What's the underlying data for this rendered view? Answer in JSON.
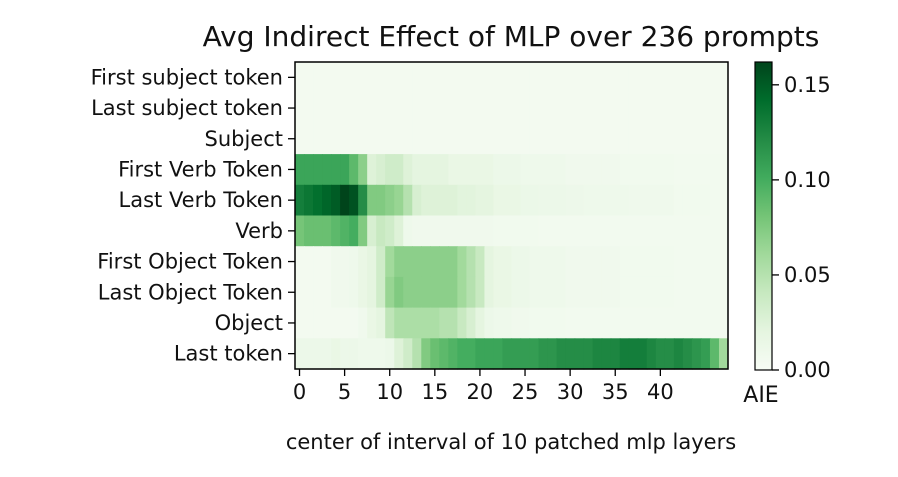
{
  "chart_data": {
    "type": "heatmap",
    "title": "Avg Indirect Effect of MLP over 236 prompts",
    "xlabel": "center of interval of 10 patched mlp layers",
    "colorbar_label": "AIE",
    "colormap": "Greens",
    "color_low": "#f7fcf5",
    "color_high": "#00441b",
    "vmin": 0.0,
    "vmax": 0.162,
    "x_ticks": [
      0,
      5,
      10,
      15,
      20,
      25,
      30,
      35,
      40
    ],
    "x_range": [
      0,
      47
    ],
    "colorbar_ticks": [
      "0.00",
      "0.05",
      "0.10",
      "0.15"
    ],
    "colorbar_tick_values": [
      0.0,
      0.05,
      0.1,
      0.15
    ],
    "rows": [
      "First subject token",
      "Last subject token",
      "Subject",
      "First Verb Token",
      "Last Verb Token",
      "Verb",
      "First Object Token",
      "Last Object Token",
      "Object",
      "Last token"
    ],
    "values": [
      [
        0.005,
        0.005,
        0.005,
        0.005,
        0.005,
        0.005,
        0.005,
        0.005,
        0.005,
        0.005,
        0.005,
        0.005,
        0.005,
        0.005,
        0.005,
        0.005,
        0.005,
        0.005,
        0.005,
        0.005,
        0.005,
        0.005,
        0.005,
        0.005,
        0.005,
        0.005,
        0.005,
        0.005,
        0.005,
        0.005,
        0.005,
        0.005,
        0.005,
        0.005,
        0.005,
        0.005,
        0.005,
        0.005,
        0.005,
        0.005,
        0.005,
        0.005,
        0.005,
        0.005,
        0.005,
        0.005,
        0.005,
        0.005
      ],
      [
        0.005,
        0.005,
        0.005,
        0.005,
        0.005,
        0.005,
        0.005,
        0.005,
        0.005,
        0.005,
        0.005,
        0.005,
        0.005,
        0.005,
        0.005,
        0.005,
        0.005,
        0.005,
        0.005,
        0.005,
        0.005,
        0.005,
        0.005,
        0.005,
        0.005,
        0.005,
        0.005,
        0.005,
        0.005,
        0.005,
        0.005,
        0.005,
        0.005,
        0.005,
        0.005,
        0.005,
        0.005,
        0.005,
        0.005,
        0.005,
        0.005,
        0.005,
        0.005,
        0.005,
        0.005,
        0.005,
        0.005,
        0.005
      ],
      [
        0.005,
        0.005,
        0.005,
        0.005,
        0.005,
        0.005,
        0.005,
        0.005,
        0.005,
        0.005,
        0.005,
        0.005,
        0.005,
        0.005,
        0.005,
        0.005,
        0.005,
        0.005,
        0.005,
        0.005,
        0.005,
        0.005,
        0.005,
        0.005,
        0.005,
        0.005,
        0.005,
        0.005,
        0.005,
        0.005,
        0.005,
        0.005,
        0.005,
        0.005,
        0.005,
        0.005,
        0.005,
        0.005,
        0.005,
        0.005,
        0.005,
        0.005,
        0.005,
        0.005,
        0.005,
        0.005,
        0.005,
        0.005
      ],
      [
        0.105,
        0.105,
        0.105,
        0.105,
        0.105,
        0.105,
        0.09,
        0.07,
        0.025,
        0.03,
        0.035,
        0.035,
        0.025,
        0.02,
        0.02,
        0.02,
        0.02,
        0.015,
        0.015,
        0.015,
        0.015,
        0.015,
        0.012,
        0.012,
        0.012,
        0.01,
        0.01,
        0.01,
        0.01,
        0.01,
        0.008,
        0.008,
        0.008,
        0.008,
        0.008,
        0.008,
        0.007,
        0.007,
        0.007,
        0.007,
        0.007,
        0.007,
        0.006,
        0.006,
        0.006,
        0.006,
        0.006,
        0.006
      ],
      [
        0.13,
        0.135,
        0.14,
        0.145,
        0.15,
        0.162,
        0.155,
        0.12,
        0.075,
        0.075,
        0.07,
        0.065,
        0.05,
        0.03,
        0.025,
        0.025,
        0.025,
        0.025,
        0.022,
        0.022,
        0.02,
        0.02,
        0.015,
        0.015,
        0.015,
        0.013,
        0.013,
        0.012,
        0.012,
        0.012,
        0.011,
        0.011,
        0.01,
        0.01,
        0.01,
        0.01,
        0.01,
        0.009,
        0.009,
        0.009,
        0.009,
        0.009,
        0.007,
        0.007,
        0.007,
        0.007,
        0.006,
        0.006
      ],
      [
        0.08,
        0.085,
        0.085,
        0.085,
        0.09,
        0.095,
        0.1,
        0.075,
        0.03,
        0.04,
        0.035,
        0.025,
        0.01,
        0.008,
        0.008,
        0.008,
        0.008,
        0.008,
        0.008,
        0.008,
        0.008,
        0.008,
        0.007,
        0.007,
        0.007,
        0.007,
        0.007,
        0.006,
        0.006,
        0.006,
        0.006,
        0.006,
        0.006,
        0.006,
        0.006,
        0.006,
        0.006,
        0.006,
        0.006,
        0.006,
        0.006,
        0.006,
        0.006,
        0.006,
        0.006,
        0.006,
        0.006,
        0.006
      ],
      [
        0.005,
        0.005,
        0.005,
        0.005,
        0.008,
        0.008,
        0.01,
        0.015,
        0.02,
        0.035,
        0.06,
        0.07,
        0.07,
        0.07,
        0.07,
        0.07,
        0.07,
        0.07,
        0.06,
        0.05,
        0.04,
        0.02,
        0.015,
        0.015,
        0.012,
        0.012,
        0.01,
        0.01,
        0.01,
        0.01,
        0.008,
        0.008,
        0.008,
        0.008,
        0.008,
        0.008,
        0.007,
        0.007,
        0.007,
        0.007,
        0.007,
        0.007,
        0.006,
        0.006,
        0.006,
        0.006,
        0.006,
        0.006
      ],
      [
        0.005,
        0.005,
        0.005,
        0.005,
        0.008,
        0.008,
        0.01,
        0.015,
        0.02,
        0.035,
        0.065,
        0.075,
        0.07,
        0.07,
        0.07,
        0.07,
        0.07,
        0.07,
        0.06,
        0.05,
        0.04,
        0.02,
        0.015,
        0.015,
        0.012,
        0.012,
        0.01,
        0.01,
        0.01,
        0.01,
        0.008,
        0.008,
        0.008,
        0.008,
        0.008,
        0.008,
        0.007,
        0.007,
        0.007,
        0.007,
        0.007,
        0.007,
        0.006,
        0.006,
        0.006,
        0.006,
        0.006,
        0.006
      ],
      [
        0.005,
        0.005,
        0.005,
        0.005,
        0.005,
        0.005,
        0.005,
        0.008,
        0.015,
        0.02,
        0.045,
        0.055,
        0.055,
        0.055,
        0.055,
        0.055,
        0.05,
        0.05,
        0.04,
        0.03,
        0.02,
        0.012,
        0.01,
        0.01,
        0.008,
        0.008,
        0.007,
        0.007,
        0.007,
        0.007,
        0.006,
        0.006,
        0.006,
        0.006,
        0.006,
        0.006,
        0.006,
        0.006,
        0.006,
        0.006,
        0.006,
        0.006,
        0.006,
        0.006,
        0.006,
        0.006,
        0.006,
        0.006
      ],
      [
        0.012,
        0.012,
        0.012,
        0.012,
        0.015,
        0.012,
        0.012,
        0.01,
        0.01,
        0.01,
        0.012,
        0.025,
        0.035,
        0.05,
        0.075,
        0.085,
        0.09,
        0.095,
        0.1,
        0.1,
        0.105,
        0.105,
        0.105,
        0.11,
        0.11,
        0.11,
        0.11,
        0.115,
        0.115,
        0.12,
        0.12,
        0.12,
        0.12,
        0.125,
        0.125,
        0.125,
        0.13,
        0.13,
        0.13,
        0.125,
        0.12,
        0.12,
        0.125,
        0.12,
        0.115,
        0.11,
        0.09,
        0.06
      ]
    ]
  }
}
